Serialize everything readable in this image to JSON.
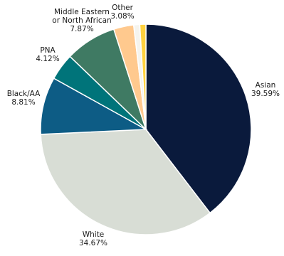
{
  "chart_data": {
    "type": "pie",
    "start": "top",
    "direction": "clockwise",
    "slices": [
      {
        "name": "Asian",
        "value": 39.59,
        "value_label": "39.59%",
        "color": "#0a1a3c"
      },
      {
        "name": "White",
        "value": 34.67,
        "value_label": "34.67%",
        "color": "#d8ddd5"
      },
      {
        "name": "Black/AA",
        "value": 8.81,
        "value_label": "8.81%",
        "color": "#0d5c85"
      },
      {
        "name": "PNA",
        "value": 4.12,
        "value_label": "4.12%",
        "color": "#00747a"
      },
      {
        "name": "Middle Eastern or North African",
        "name_lines": [
          "Middle Eastern",
          "or North African"
        ],
        "value": 7.87,
        "value_label": "7.87%",
        "color": "#3f7a63"
      },
      {
        "name": "Other",
        "value": 3.08,
        "value_label": "3.08%",
        "color": "#ffc98e"
      },
      {
        "name": "",
        "value": 0.93,
        "value_label": "",
        "color": "#f5f4ee"
      },
      {
        "name": "",
        "value": 0.93,
        "value_label": "",
        "color": "#ffd23f"
      }
    ]
  }
}
